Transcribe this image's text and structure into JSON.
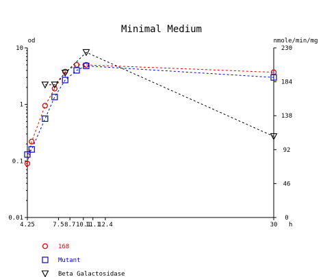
{
  "chart_data": {
    "type": "line",
    "title": "Minimal Medium",
    "xlabel": "h",
    "ylabel_left": "od",
    "ylabel_right": "nmole/min/mg",
    "x_ticks": [
      "4.25",
      "7.5",
      "8.7",
      "10.1",
      "11.1",
      "12.4",
      "30"
    ],
    "x_range": [
      4.25,
      30
    ],
    "y_left": {
      "scale": "log",
      "range": [
        0.01,
        10
      ],
      "ticks": [
        "0.01",
        "0.1",
        "1",
        "10"
      ]
    },
    "y_right": {
      "scale": "linear",
      "range": [
        0,
        230
      ],
      "ticks": [
        "0",
        "46",
        "92",
        "138",
        "184",
        "230"
      ]
    },
    "grid": false,
    "legend_position": "bottom-left",
    "series": [
      {
        "name": "168",
        "axis": "left",
        "color": "#dd0000",
        "marker": "circle",
        "points": [
          [
            4.25,
            0.09
          ],
          [
            4.7,
            0.22
          ],
          [
            6.1,
            0.95
          ],
          [
            7.1,
            1.9
          ],
          [
            8.2,
            3.8
          ],
          [
            9.4,
            5.0
          ],
          [
            10.4,
            5.0
          ],
          [
            30,
            3.7
          ]
        ]
      },
      {
        "name": "Mutant",
        "axis": "left",
        "color": "#0000cc",
        "marker": "square",
        "points": [
          [
            4.25,
            0.13
          ],
          [
            4.7,
            0.16
          ],
          [
            6.1,
            0.56
          ],
          [
            7.1,
            1.35
          ],
          [
            8.2,
            2.7
          ],
          [
            9.4,
            4.0
          ],
          [
            10.4,
            4.8
          ],
          [
            30,
            3.0
          ]
        ]
      },
      {
        "name": "Beta Galactosidase",
        "axis": "right",
        "color": "#000000",
        "marker": "triangle",
        "points": [
          [
            6.1,
            180
          ],
          [
            7.1,
            180
          ],
          [
            8.2,
            196
          ],
          [
            10.4,
            224
          ],
          [
            30,
            110
          ]
        ]
      }
    ]
  }
}
